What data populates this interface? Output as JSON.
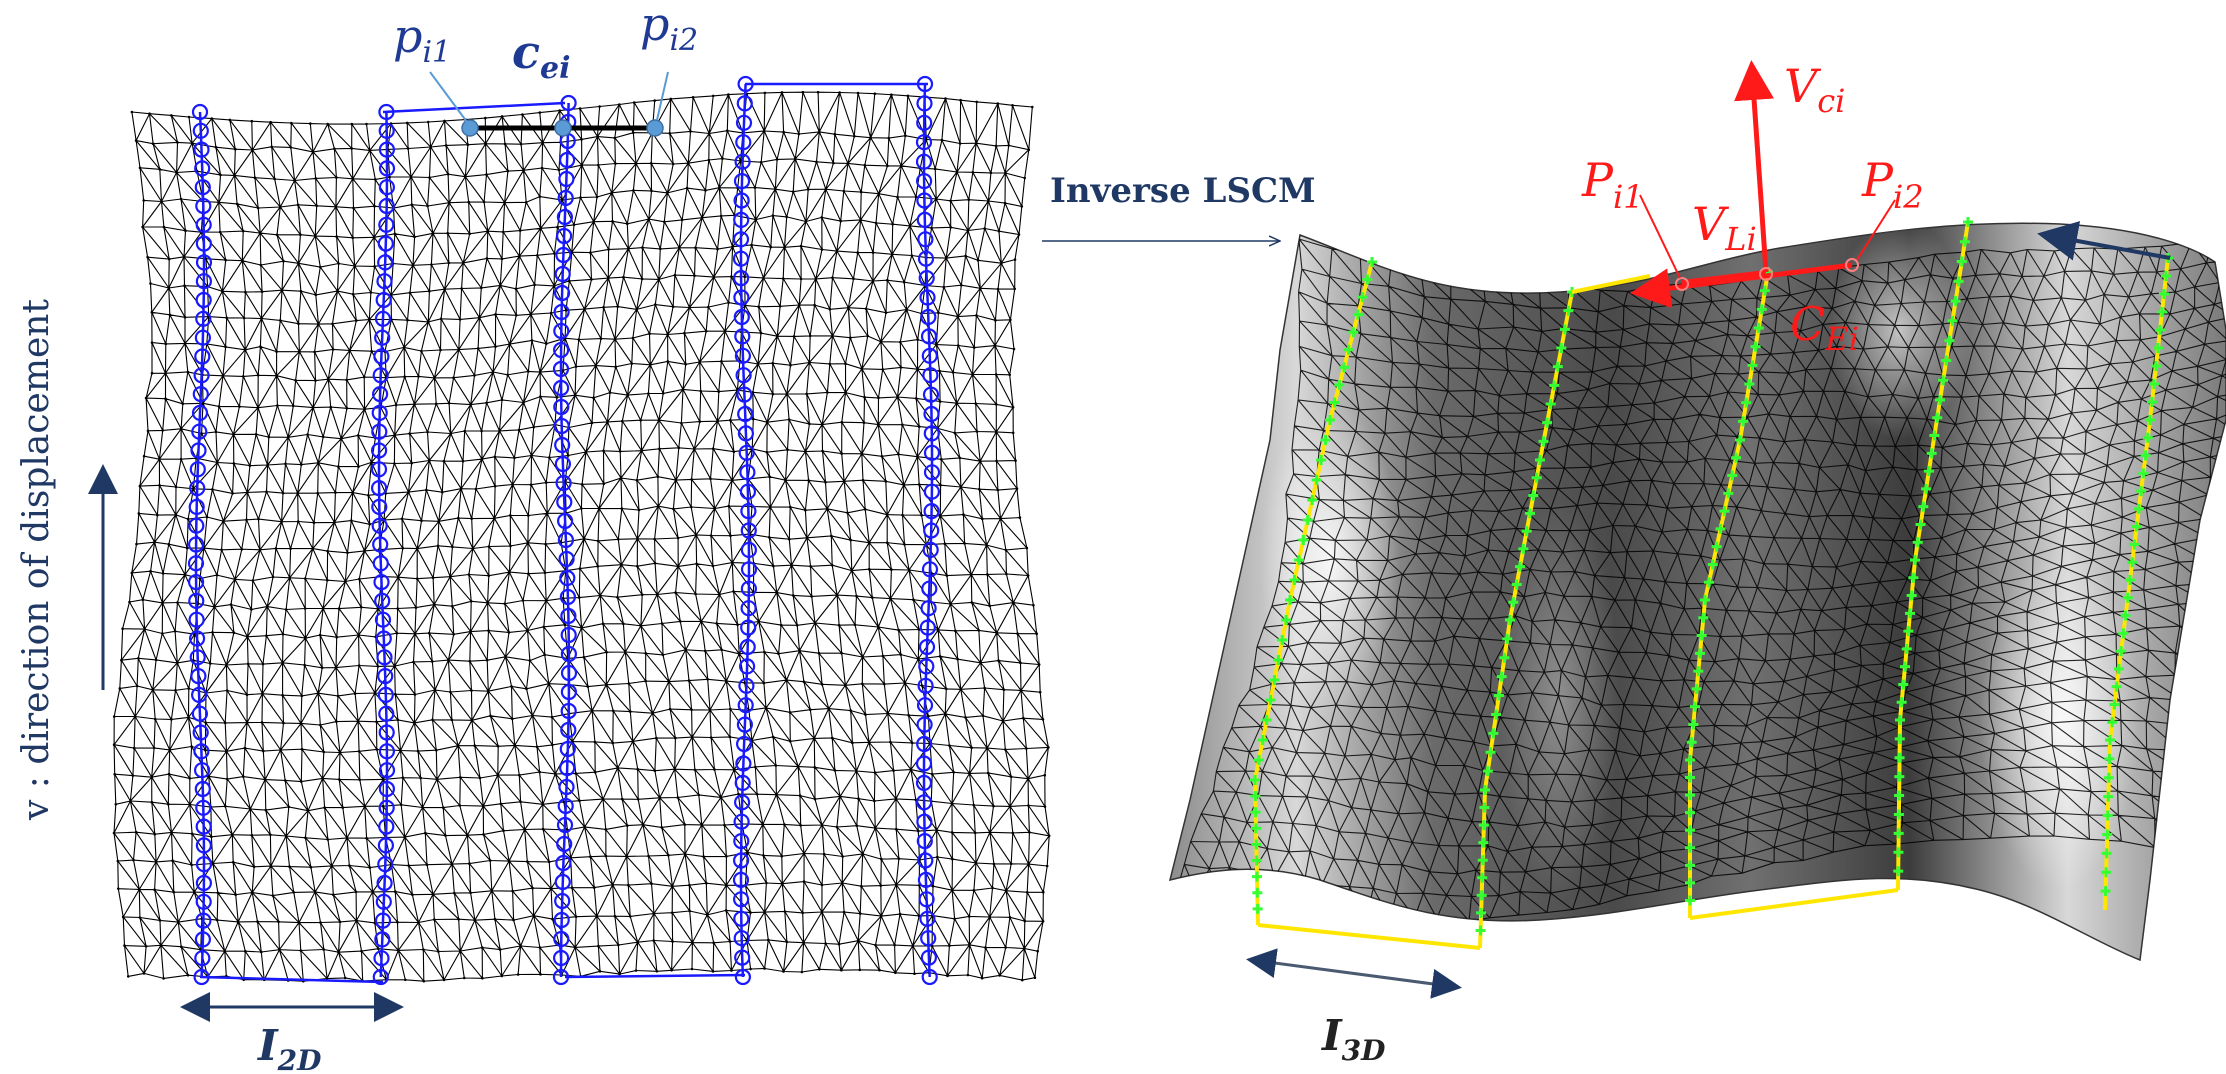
{
  "figure": {
    "left_panel": {
      "label_p1": {
        "base": "p",
        "sub": "i1"
      },
      "label_ce": {
        "base": "c",
        "sub": "ei"
      },
      "label_p2": {
        "base": "p",
        "sub": "i2"
      },
      "width_label": {
        "base": "I",
        "sub": "2D"
      },
      "side_label": "v : direction of displacement",
      "mesh_color": "#000000",
      "isoline_color": "#1a1aff"
    },
    "arrow_label": "Inverse LSCM",
    "right_panel": {
      "label_Vci": {
        "base": "V",
        "sub": "ci"
      },
      "label_Pi1": {
        "base": "P",
        "sub": "i1"
      },
      "label_VLi": {
        "base": "V",
        "sub": "Li"
      },
      "label_Pi2": {
        "base": "P",
        "sub": "i2"
      },
      "label_CEi": {
        "base": "C",
        "sub": "Ei"
      },
      "width_label": {
        "base": "I",
        "sub": "3D"
      },
      "accent_red": "#ff1a1a",
      "boundary_yellow": "#ffe600",
      "marker_green": "#33ff33"
    },
    "colors": {
      "navy": "#1f3864",
      "blue_text": "#1f3a93"
    }
  }
}
